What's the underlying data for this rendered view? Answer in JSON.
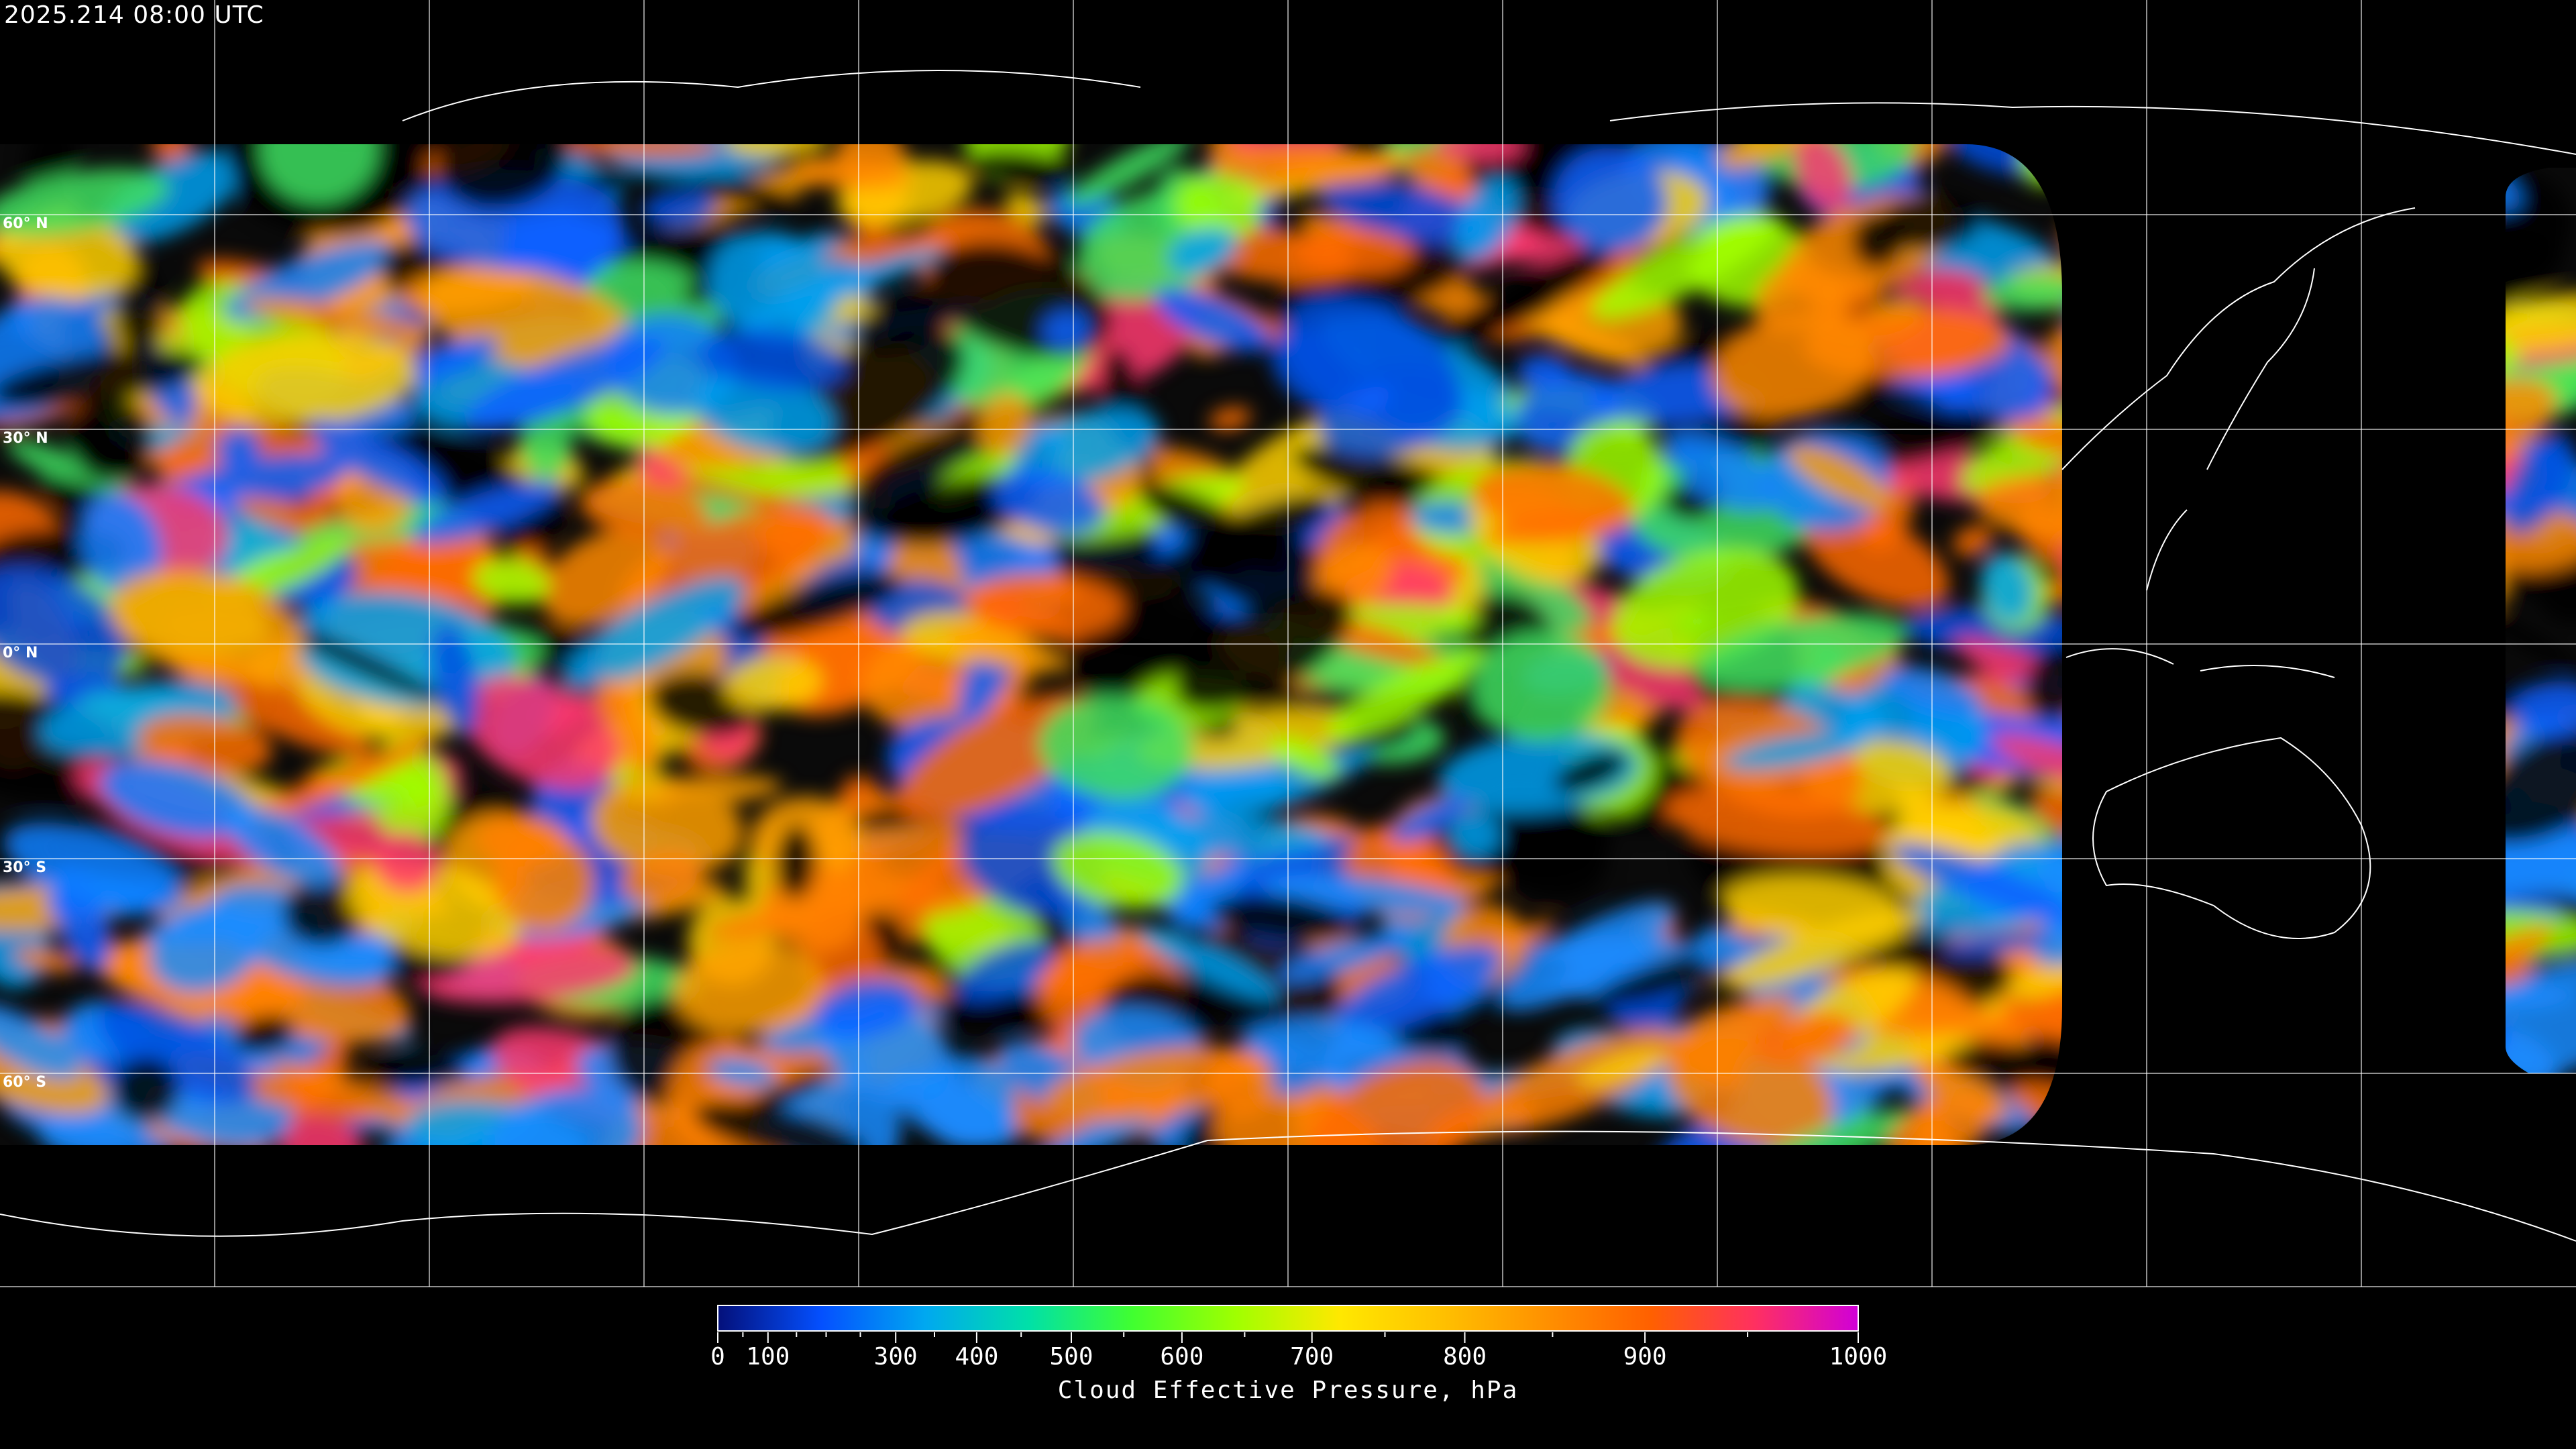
{
  "header": {
    "timestamp": "2025.214 08:00 UTC"
  },
  "map": {
    "projection": "equirectangular",
    "gridline_color": "#ffffff",
    "coastline_color": "#ffffff",
    "background": "#000000",
    "lat_labels": [
      "60° N",
      "30° N",
      "0° N",
      "30° S",
      "60° S"
    ]
  },
  "colorbar": {
    "title": "Cloud Effective Pressure, hPa",
    "range": [
      0,
      1000
    ],
    "tick_labels": [
      "0",
      "100",
      "300",
      "400",
      "500",
      "600",
      "700",
      "800",
      "900",
      "1000"
    ],
    "colors": [
      "#04107a",
      "#0450ff",
      "#00a8f0",
      "#00e0a8",
      "#40ff30",
      "#a0ff00",
      "#ffe800",
      "#ffc000",
      "#ff9000",
      "#ff6000",
      "#ff3060",
      "#d000d8"
    ]
  }
}
